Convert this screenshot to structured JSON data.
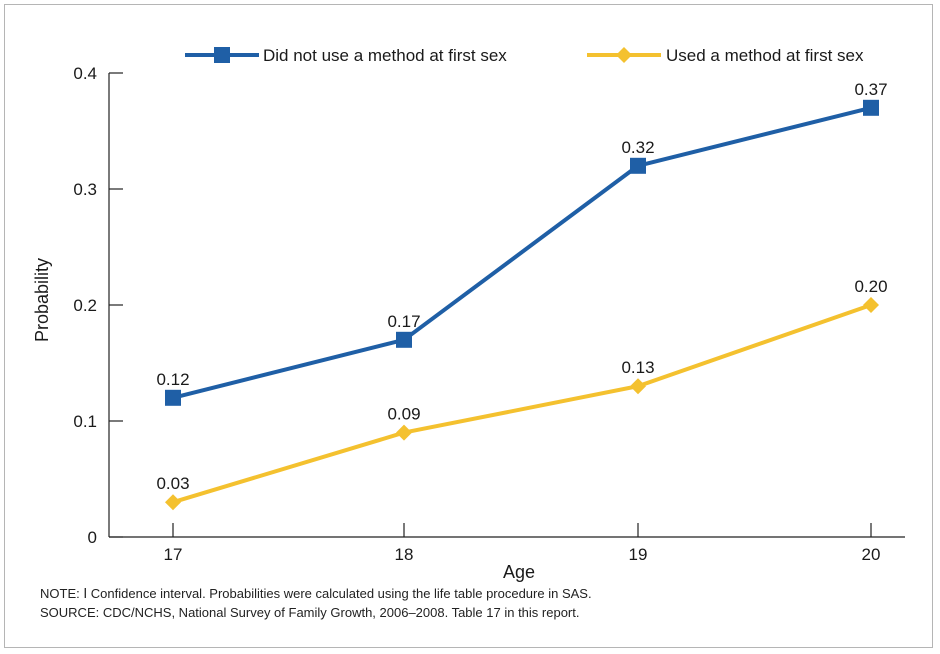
{
  "chart_data": {
    "type": "line",
    "title": "",
    "xlabel": "Age",
    "ylabel": "Probability",
    "categories": [
      "17",
      "18",
      "19",
      "20"
    ],
    "y_ticks": [
      "0",
      "0.1",
      "0.2",
      "0.3",
      "0.4"
    ],
    "ylim": [
      0,
      0.4
    ],
    "grid": false,
    "legend_position": "top",
    "series": [
      {
        "name": "Did not use a method at first sex",
        "values": [
          0.12,
          0.17,
          0.32,
          0.37
        ],
        "labels": [
          "0.12",
          "0.17",
          "0.32",
          "0.37"
        ],
        "color": "#1f5fa6",
        "marker": "square"
      },
      {
        "name": "Used a method at first sex",
        "values": [
          0.03,
          0.09,
          0.13,
          0.2
        ],
        "labels": [
          "0.03",
          "0.09",
          "0.13",
          "0.20"
        ],
        "color": "#f4c12f",
        "marker": "diamond"
      }
    ]
  },
  "notes": {
    "line1": "NOTE: Ⅰ Confidence interval. Probabilities were calculated using the life table procedure in SAS.",
    "line2": "SOURCE: CDC/NCHS, National Survey of Family Growth, 2006–2008. Table 17 in this report."
  }
}
